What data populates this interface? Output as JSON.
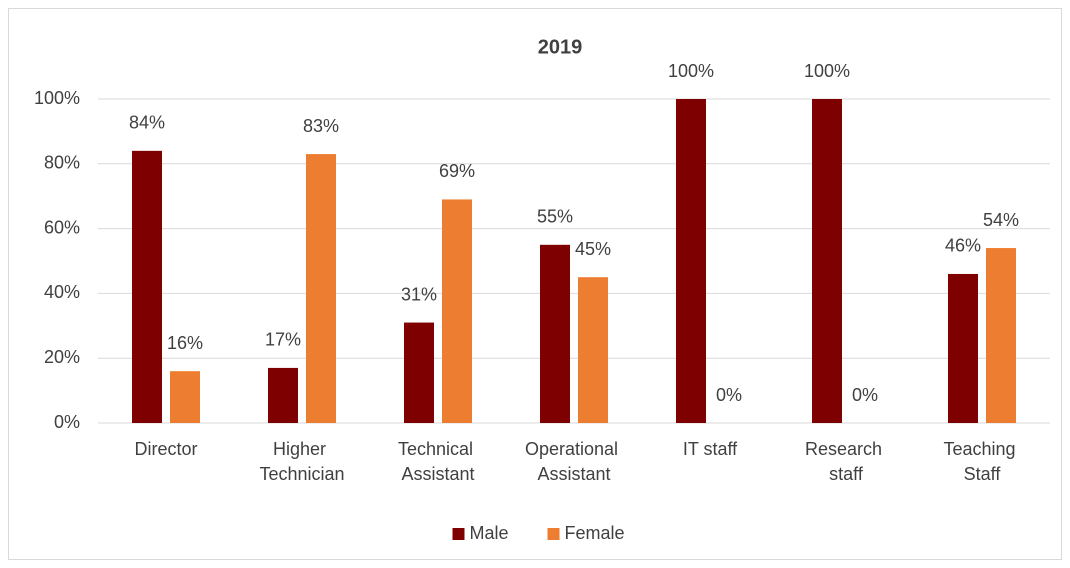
{
  "chart_data": {
    "type": "bar",
    "title": "2019",
    "categories": [
      "Director",
      "Higher Technician",
      "Technical Assistant",
      "Operational Assistant",
      "IT staff",
      "Research staff",
      "Teaching Staff"
    ],
    "series": [
      {
        "name": "Male",
        "color": "#7f0000",
        "values": [
          84,
          17,
          31,
          55,
          100,
          100,
          46
        ],
        "value_labels": [
          "84%",
          "17%",
          "31%",
          "55%",
          "100%",
          "100%",
          "46%"
        ]
      },
      {
        "name": "Female",
        "color": "#ed7d31",
        "values": [
          16,
          83,
          69,
          45,
          0,
          0,
          54
        ],
        "value_labels": [
          "16%",
          "83%",
          "69%",
          "45%",
          "0%",
          "0%",
          "54%"
        ]
      }
    ],
    "ylim": [
      0,
      100
    ],
    "yticks": [
      {
        "value": 0,
        "label": "0%"
      },
      {
        "value": 20,
        "label": "20%"
      },
      {
        "value": 40,
        "label": "40%"
      },
      {
        "value": 60,
        "label": "60%"
      },
      {
        "value": 80,
        "label": "80%"
      },
      {
        "value": 100,
        "label": "100%"
      }
    ],
    "grid": true,
    "legend": "bottom"
  }
}
